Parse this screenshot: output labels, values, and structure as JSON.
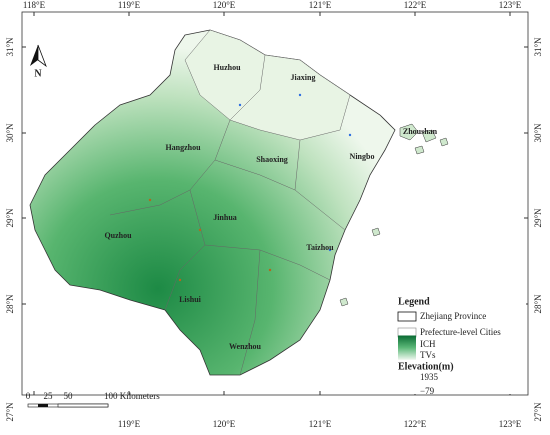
{
  "map": {
    "north_arrow": "N",
    "lon_ticks": [
      "118°E",
      "119°E",
      "120°E",
      "121°E",
      "122°E",
      "123°E"
    ],
    "lat_ticks": [
      "31°N",
      "30°N",
      "29°N",
      "28°N",
      "27°N"
    ],
    "cities": [
      "Huzhou",
      "Jiaxing",
      "Hangzhou",
      "Shaoxing",
      "Ningbo",
      "Zhoushan",
      "Quzhou",
      "Jinhua",
      "Taizhou",
      "Lishui",
      "Wenzhou"
    ],
    "legend": {
      "title": "Legend",
      "province": "Zhejiang Province",
      "cities": "Prefecture-level Cities",
      "ich": "ICH",
      "tvs": "TVs",
      "elevation": "Elevation(m)",
      "high": "1935",
      "low": "−79"
    },
    "scale_bar": [
      "0",
      "25",
      "50",
      "100 Kilometers"
    ]
  }
}
